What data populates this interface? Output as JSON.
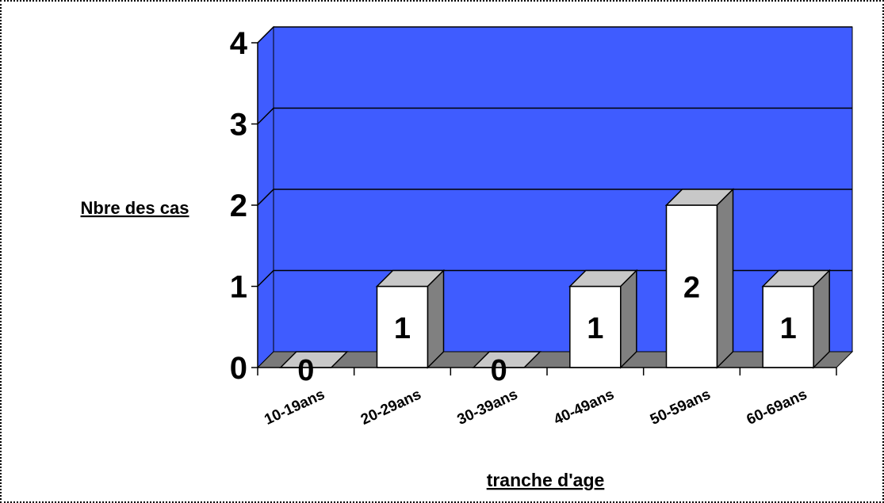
{
  "chart_data": {
    "type": "bar",
    "title": "",
    "xlabel": "tranche d'age",
    "ylabel": "Nbre des cas",
    "categories": [
      "10-19ans",
      "20-29ans",
      "30-39ans",
      "40-49ans",
      "50-59ans",
      "60-69ans"
    ],
    "values": [
      0,
      1,
      0,
      1,
      2,
      1
    ],
    "data_labels": [
      "0",
      "1",
      "0",
      "1",
      "2",
      "1"
    ],
    "y_ticks": [
      "0",
      "1",
      "2",
      "3",
      "4"
    ],
    "ylim": [
      0,
      4
    ],
    "grid": true,
    "three_d": true,
    "legend": "none"
  },
  "colors": {
    "wall": "#3f5cff",
    "floor": "#7a7a7a",
    "bar_front": "#ffffff",
    "bar_top": "#c8c8c8",
    "bar_side": "#808080",
    "zero_bar": "#c8c8c8",
    "grid_line": "#000000"
  }
}
